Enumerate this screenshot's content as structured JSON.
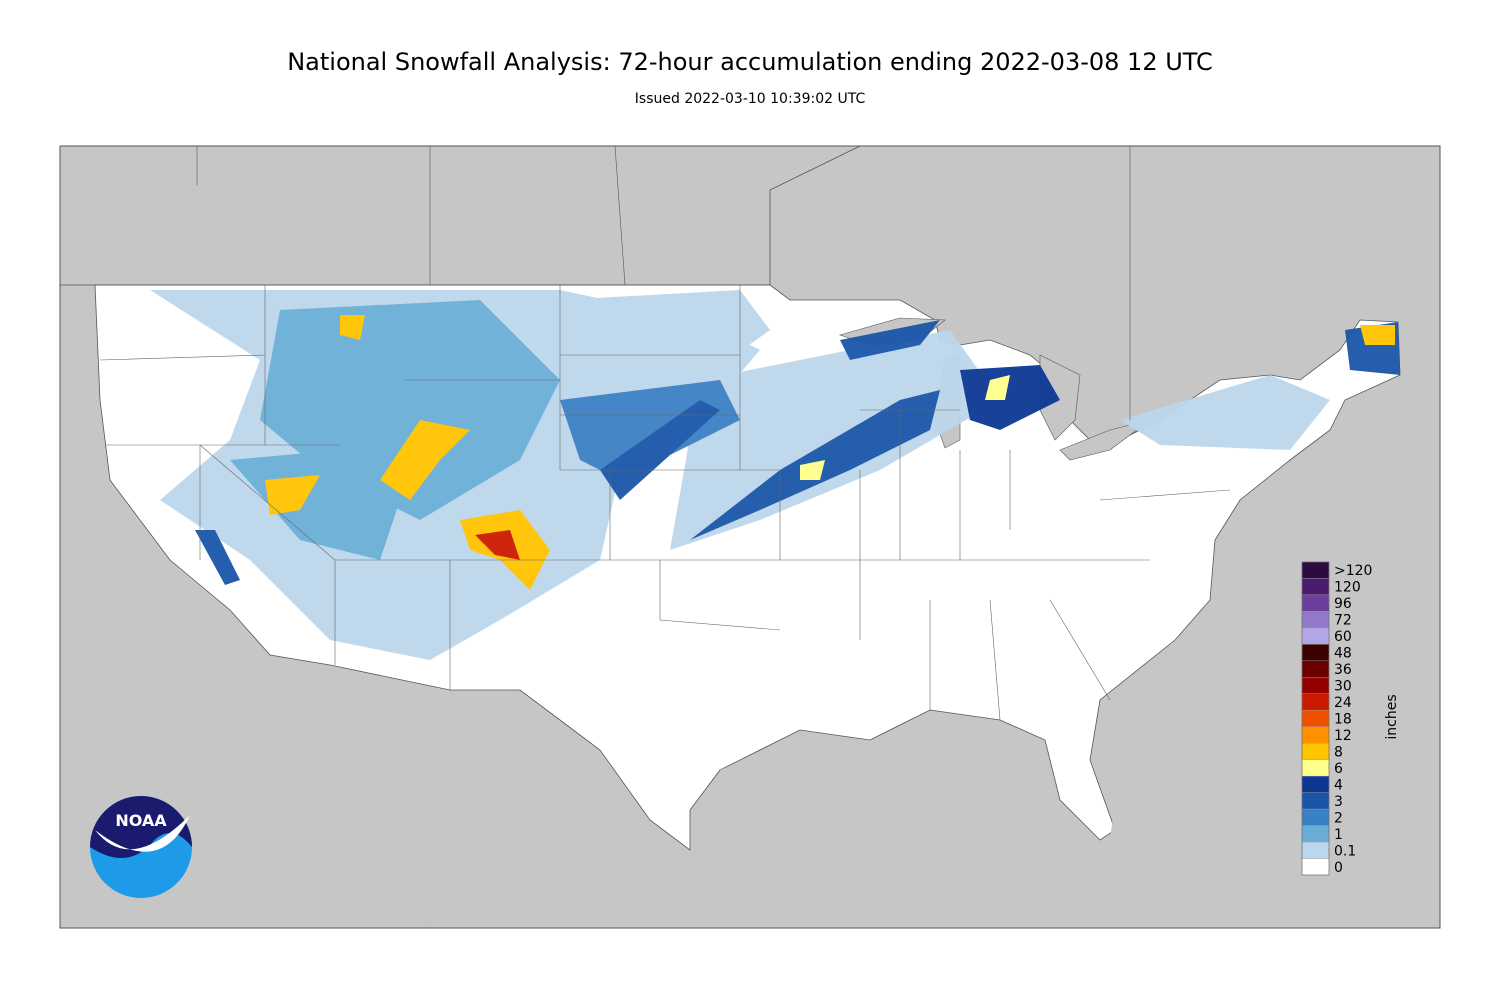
{
  "header": {
    "title": "National Snowfall Analysis: 72-hour accumulation ending 2022-03-08 12 UTC",
    "subtitle": "Issued 2022-03-10 10:39:02 UTC"
  },
  "logo": {
    "text": "NOAA"
  },
  "legend": {
    "title": "inches",
    "items": [
      {
        "label": ">120",
        "color": "#2d0a3f"
      },
      {
        "label": "120",
        "color": "#4b1b6e"
      },
      {
        "label": "96",
        "color": "#6c3f9c"
      },
      {
        "label": "72",
        "color": "#9278c8"
      },
      {
        "label": "60",
        "color": "#b3a6e6"
      },
      {
        "label": "48",
        "color": "#3b0300"
      },
      {
        "label": "36",
        "color": "#6a0000"
      },
      {
        "label": "30",
        "color": "#950000"
      },
      {
        "label": "24",
        "color": "#cc1a00"
      },
      {
        "label": "18",
        "color": "#f05000"
      },
      {
        "label": "12",
        "color": "#ff9000"
      },
      {
        "label": "8",
        "color": "#ffc400"
      },
      {
        "label": "6",
        "color": "#ffff8c"
      },
      {
        "label": "4",
        "color": "#0c3894"
      },
      {
        "label": "3",
        "color": "#1a56a8"
      },
      {
        "label": "2",
        "color": "#3a80c4"
      },
      {
        "label": "1",
        "color": "#6aaed8"
      },
      {
        "label": "0.1",
        "color": "#bcd6eb"
      },
      {
        "label": "0",
        "color": "#ffffff"
      }
    ]
  }
}
